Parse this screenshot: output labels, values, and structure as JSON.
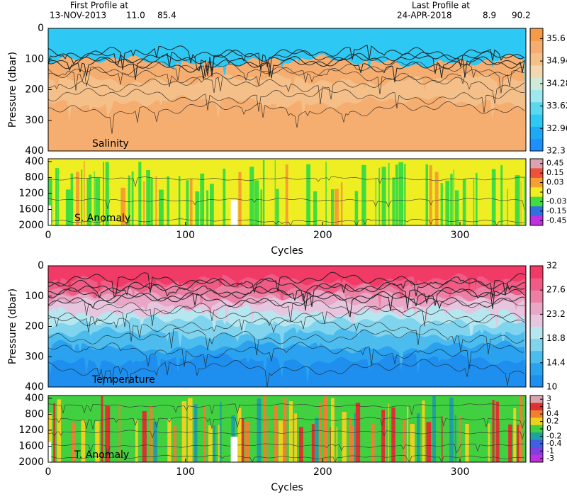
{
  "header": {
    "first_label": "First Profile at",
    "first_date": "13-NOV-2013",
    "first_v1": "11.0",
    "first_v2": "85.4",
    "last_label": "Last Profile at",
    "last_date": "24-APR-2018",
    "last_v1": "8.9",
    "last_v2": "90.2"
  },
  "chart_data": [
    {
      "type": "heatmap",
      "ylabel": "Pressure (dbar)",
      "label": "Salinity",
      "xlim": [
        0,
        348
      ],
      "ylim": [
        0,
        400
      ],
      "yticks": [
        0,
        100,
        200,
        300,
        400
      ],
      "colorbar": {
        "lim": [
          32.3,
          35.9
        ],
        "ticks": [
          35.6,
          34.94,
          34.28,
          33.62,
          32.96,
          32.3
        ],
        "colors": [
          "#1e8fff",
          "#1fa8f5",
          "#2ec8f4",
          "#5ad8f0",
          "#9ee9f0",
          "#cdebd8",
          "#f2d7b0",
          "#f4bf88",
          "#f5ae70",
          "#f79a45"
        ]
      }
    },
    {
      "type": "heatmap",
      "label": "S. Anomaly",
      "xlabel": "Cycles",
      "xlim": [
        0,
        348
      ],
      "xticks": [
        0,
        100,
        200,
        300
      ],
      "ylim": [
        330,
        2000
      ],
      "yticks": [
        400,
        800,
        1200,
        1600,
        2000
      ],
      "colorbar": {
        "ticks": [
          0.45,
          0.15,
          0.03,
          0,
          -0.03,
          -0.15,
          -0.45
        ],
        "colors": [
          "#d9a3b0",
          "#f0503c",
          "#f5a030",
          "#eeee22",
          "#40dd40",
          "#3070e0",
          "#c030e0"
        ]
      }
    },
    {
      "type": "heatmap",
      "ylabel": "Pressure (dbar)",
      "label": "Temperature",
      "xlim": [
        0,
        348
      ],
      "ylim": [
        0,
        400
      ],
      "yticks": [
        0,
        100,
        200,
        300,
        400
      ],
      "colorbar": {
        "lim": [
          10,
          32
        ],
        "ticks": [
          32,
          27.6,
          23.2,
          18.8,
          14.4,
          10
        ],
        "colors": [
          "#1e8fee",
          "#2aa2f0",
          "#4cbcee",
          "#80d4ee",
          "#b6e6ef",
          "#e6c6df",
          "#e9a6c6",
          "#ec7fa4",
          "#ef5b84",
          "#f23a66"
        ]
      }
    },
    {
      "type": "heatmap",
      "label": "T. Anomaly",
      "xlabel": "Cycles",
      "xlim": [
        0,
        348
      ],
      "xticks": [
        0,
        100,
        200,
        300
      ],
      "ylim": [
        330,
        2000
      ],
      "yticks": [
        400,
        800,
        1200,
        1600,
        2000
      ],
      "colorbar": {
        "ticks": [
          3,
          1,
          0.4,
          0.2,
          0,
          -0.2,
          -0.4,
          -1,
          -3
        ],
        "colors": [
          "#d9a3b0",
          "#e03030",
          "#f08030",
          "#eed020",
          "#40d040",
          "#20a0a0",
          "#4060e0",
          "#8040e0",
          "#c030e0"
        ]
      }
    }
  ]
}
